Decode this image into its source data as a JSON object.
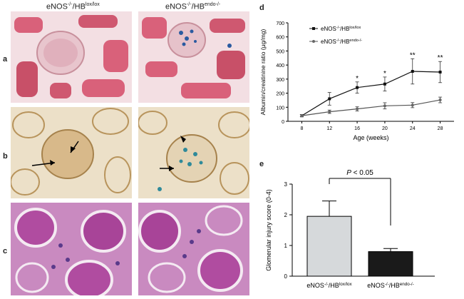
{
  "columns": [
    {
      "prefix": "eNOS",
      "prefix_sup": "-/-",
      "mid": "/HB",
      "mid_sup": "lox/lox"
    },
    {
      "prefix": "eNOS",
      "prefix_sup": "-/-",
      "mid": "/HB",
      "mid_sup": "endo-/-"
    }
  ],
  "row_labels": [
    "a",
    "b",
    "c"
  ],
  "panel_d_label": "d",
  "panel_e_label": "e",
  "colors": {
    "stain_pink": "#d9617a",
    "stain_tan": "#d8b98a",
    "stain_pas": "#b04ca0",
    "prussian_blue": "#2a5aa0",
    "bar_light": "#d6d9db",
    "bar_dark": "#1a1a1a"
  },
  "chart_data": [
    {
      "type": "line",
      "panel": "d",
      "xlabel": "Age (weeks)",
      "ylabel": "Albumin/creatinine ratio (μg/mg)",
      "x": [
        8,
        12,
        16,
        20,
        24,
        28
      ],
      "xticks": [
        "8",
        "12",
        "16",
        "20",
        "24",
        "28"
      ],
      "yticks": [
        "0",
        "100",
        "200",
        "300",
        "400",
        "500",
        "600",
        "700"
      ],
      "ylim": [
        0,
        700
      ],
      "series": [
        {
          "name_prefix": "eNOS",
          "name_prefix_sup": "-/-",
          "name_mid": "/HB",
          "name_mid_sup": "lox/lox",
          "marker": "square",
          "values": [
            40,
            160,
            240,
            265,
            355,
            350
          ],
          "errors": [
            8,
            45,
            40,
            50,
            90,
            75
          ]
        },
        {
          "name_prefix": "eNOS",
          "name_prefix_sup": "-/-",
          "name_mid": "/HB",
          "name_mid_sup": "endo-/-",
          "marker": "circle",
          "values": [
            40,
            68,
            88,
            110,
            115,
            152
          ],
          "errors": [
            8,
            12,
            15,
            22,
            18,
            20
          ]
        }
      ],
      "significance": [
        {
          "x": 16,
          "label": "*"
        },
        {
          "x": 20,
          "label": "*"
        },
        {
          "x": 24,
          "label": "**"
        },
        {
          "x": 28,
          "label": "**"
        }
      ]
    },
    {
      "type": "bar",
      "panel": "e",
      "ylabel": "Glomerular injury score (0-4)",
      "ylim": [
        0,
        3
      ],
      "yticks": [
        "0",
        "1",
        "2",
        "3"
      ],
      "categories": [
        {
          "prefix": "eNOS",
          "prefix_sup": "-/-",
          "mid": "/HB",
          "mid_sup": "lox/lox"
        },
        {
          "prefix": "eNOS",
          "prefix_sup": "-/-",
          "mid": "/HB",
          "mid_sup": "endo-/-"
        }
      ],
      "values": [
        1.95,
        0.8
      ],
      "errors": [
        0.5,
        0.1
      ],
      "significance": {
        "label_italic": "P",
        "label_rest": " < 0.05"
      }
    }
  ]
}
